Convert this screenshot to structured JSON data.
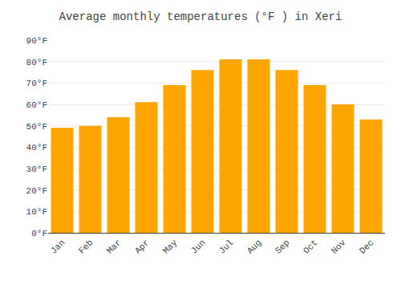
{
  "chart_data": {
    "type": "bar",
    "title": "Average monthly temperatures (°F ) in Xeri",
    "categories": [
      "Jan",
      "Feb",
      "Mar",
      "Apr",
      "May",
      "Jun",
      "Jul",
      "Aug",
      "Sep",
      "Oct",
      "Nov",
      "Dec"
    ],
    "values": [
      49,
      50,
      54,
      61,
      69,
      76,
      81,
      81,
      76,
      69,
      60,
      53
    ],
    "color": "#FFA500",
    "ylim": [
      0,
      90
    ],
    "yticks": [
      {
        "value": 0,
        "label": "0°F"
      },
      {
        "value": 10,
        "label": "10°F"
      },
      {
        "value": 20,
        "label": "20°F"
      },
      {
        "value": 30,
        "label": "30°F"
      },
      {
        "value": 40,
        "label": "40°F"
      },
      {
        "value": 50,
        "label": "50°F"
      },
      {
        "value": 60,
        "label": "60°F"
      },
      {
        "value": 70,
        "label": "70°F"
      },
      {
        "value": 80,
        "label": "80°F"
      },
      {
        "value": 90,
        "label": "90°F"
      }
    ],
    "grid": true
  }
}
